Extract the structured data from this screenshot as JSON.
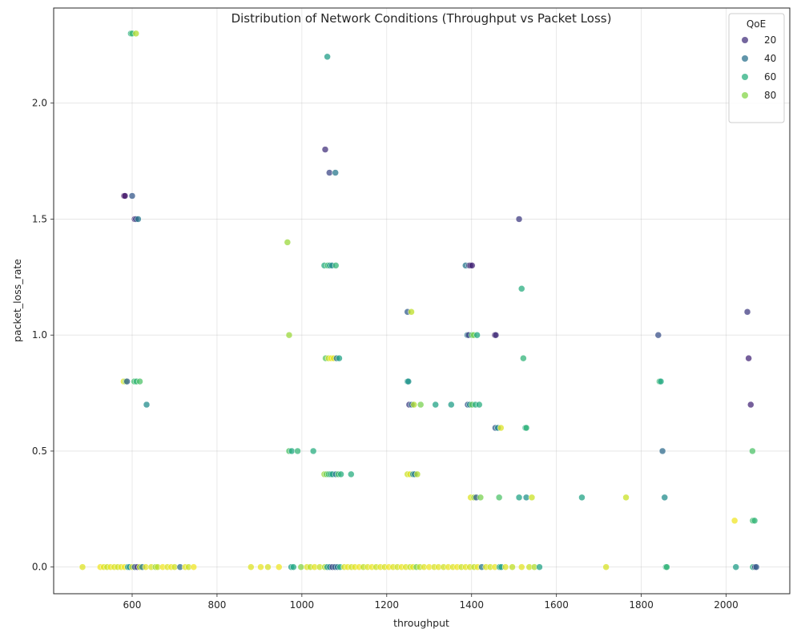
{
  "chart_data": {
    "type": "scatter",
    "title": "Distribution of Network Conditions (Throughput vs Packet Loss)",
    "xlabel": "throughput",
    "ylabel": "packet_loss_rate",
    "xlim": [
      415,
      2150
    ],
    "ylim": [
      -0.115,
      2.41
    ],
    "xticks": [
      600,
      800,
      1000,
      1200,
      1400,
      1600,
      1800,
      2000
    ],
    "yticks": [
      0.0,
      0.5,
      1.0,
      1.5,
      2.0
    ],
    "ytick_labels": [
      "0.0",
      "0.5",
      "1.0",
      "1.5",
      "2.0"
    ],
    "grid": true,
    "colormap": "viridis",
    "color_range": [
      0,
      100
    ],
    "legend": {
      "title": "QoE",
      "position": "top-right",
      "entries": [
        {
          "label": "20",
          "value": 20,
          "color": "#46337e"
        },
        {
          "label": "40",
          "value": 40,
          "color": "#2c728e"
        },
        {
          "label": "60",
          "value": 60,
          "color": "#29af7f"
        },
        {
          "label": "80",
          "value": 80,
          "color": "#86d549"
        }
      ]
    },
    "points": [
      {
        "x": 597,
        "y": 2.3,
        "qoe": 62
      },
      {
        "x": 600,
        "y": 2.3,
        "qoe": 68
      },
      {
        "x": 609,
        "y": 2.3,
        "qoe": 88
      },
      {
        "x": 1060,
        "y": 2.2,
        "qoe": 55
      },
      {
        "x": 1055,
        "y": 1.8,
        "qoe": 15
      },
      {
        "x": 1065,
        "y": 1.7,
        "qoe": 22
      },
      {
        "x": 1079,
        "y": 1.7,
        "qoe": 40
      },
      {
        "x": 581,
        "y": 1.6,
        "qoe": 5
      },
      {
        "x": 583,
        "y": 1.6,
        "qoe": 8
      },
      {
        "x": 600,
        "y": 1.6,
        "qoe": 28
      },
      {
        "x": 606,
        "y": 1.5,
        "qoe": 10
      },
      {
        "x": 609,
        "y": 1.5,
        "qoe": 22
      },
      {
        "x": 614,
        "y": 1.5,
        "qoe": 40
      },
      {
        "x": 1512,
        "y": 1.5,
        "qoe": 18
      },
      {
        "x": 966,
        "y": 1.4,
        "qoe": 85
      },
      {
        "x": 1053,
        "y": 1.3,
        "qoe": 62
      },
      {
        "x": 1061,
        "y": 1.3,
        "qoe": 70
      },
      {
        "x": 1066,
        "y": 1.3,
        "qoe": 55
      },
      {
        "x": 1071,
        "y": 1.3,
        "qoe": 48
      },
      {
        "x": 1080,
        "y": 1.3,
        "qoe": 66
      },
      {
        "x": 1386,
        "y": 1.3,
        "qoe": 40
      },
      {
        "x": 1394,
        "y": 1.3,
        "qoe": 25
      },
      {
        "x": 1397,
        "y": 1.3,
        "qoe": 8
      },
      {
        "x": 1401,
        "y": 1.3,
        "qoe": 12
      },
      {
        "x": 1518,
        "y": 1.2,
        "qoe": 62
      },
      {
        "x": 1249,
        "y": 1.1,
        "qoe": 30
      },
      {
        "x": 1258,
        "y": 1.1,
        "qoe": 90
      },
      {
        "x": 2050,
        "y": 1.1,
        "qoe": 18
      },
      {
        "x": 970,
        "y": 1.0,
        "qoe": 85
      },
      {
        "x": 1390,
        "y": 1.0,
        "qoe": 42
      },
      {
        "x": 1393,
        "y": 1.0,
        "qoe": 20
      },
      {
        "x": 1401,
        "y": 1.0,
        "qoe": 72
      },
      {
        "x": 1405,
        "y": 1.0,
        "qoe": 80
      },
      {
        "x": 1413,
        "y": 1.0,
        "qoe": 60
      },
      {
        "x": 1455,
        "y": 1.0,
        "qoe": 10
      },
      {
        "x": 1457,
        "y": 1.0,
        "qoe": 15
      },
      {
        "x": 1840,
        "y": 1.0,
        "qoe": 25
      },
      {
        "x": 1056,
        "y": 0.9,
        "qoe": 75
      },
      {
        "x": 1063,
        "y": 0.9,
        "qoe": 92
      },
      {
        "x": 1069,
        "y": 0.9,
        "qoe": 98
      },
      {
        "x": 1075,
        "y": 0.9,
        "qoe": 95
      },
      {
        "x": 1082,
        "y": 0.9,
        "qoe": 38
      },
      {
        "x": 1088,
        "y": 0.9,
        "qoe": 58
      },
      {
        "x": 1522,
        "y": 0.9,
        "qoe": 65
      },
      {
        "x": 2053,
        "y": 0.9,
        "qoe": 12
      },
      {
        "x": 580,
        "y": 0.8,
        "qoe": 95
      },
      {
        "x": 585,
        "y": 0.8,
        "qoe": 80
      },
      {
        "x": 588,
        "y": 0.8,
        "qoe": 30
      },
      {
        "x": 605,
        "y": 0.8,
        "qoe": 70
      },
      {
        "x": 610,
        "y": 0.8,
        "qoe": 66
      },
      {
        "x": 618,
        "y": 0.8,
        "qoe": 72
      },
      {
        "x": 1249,
        "y": 0.8,
        "qoe": 55
      },
      {
        "x": 1251,
        "y": 0.8,
        "qoe": 50
      },
      {
        "x": 1843,
        "y": 0.8,
        "qoe": 68
      },
      {
        "x": 1846,
        "y": 0.8,
        "qoe": 60
      },
      {
        "x": 634,
        "y": 0.7,
        "qoe": 48
      },
      {
        "x": 1253,
        "y": 0.7,
        "qoe": 20
      },
      {
        "x": 1259,
        "y": 0.7,
        "qoe": 35
      },
      {
        "x": 1264,
        "y": 0.7,
        "qoe": 88
      },
      {
        "x": 1280,
        "y": 0.7,
        "qoe": 80
      },
      {
        "x": 1315,
        "y": 0.7,
        "qoe": 58
      },
      {
        "x": 1352,
        "y": 0.7,
        "qoe": 55
      },
      {
        "x": 1391,
        "y": 0.7,
        "qoe": 28
      },
      {
        "x": 1396,
        "y": 0.7,
        "qoe": 50
      },
      {
        "x": 1401,
        "y": 0.7,
        "qoe": 76
      },
      {
        "x": 1409,
        "y": 0.7,
        "qoe": 62
      },
      {
        "x": 1418,
        "y": 0.7,
        "qoe": 62
      },
      {
        "x": 2058,
        "y": 0.7,
        "qoe": 12
      },
      {
        "x": 1456,
        "y": 0.6,
        "qoe": 30
      },
      {
        "x": 1462,
        "y": 0.6,
        "qoe": 48
      },
      {
        "x": 1469,
        "y": 0.6,
        "qoe": 95
      },
      {
        "x": 1527,
        "y": 0.6,
        "qoe": 60
      },
      {
        "x": 1529,
        "y": 0.6,
        "qoe": 65
      },
      {
        "x": 970,
        "y": 0.5,
        "qoe": 72
      },
      {
        "x": 976,
        "y": 0.5,
        "qoe": 60
      },
      {
        "x": 990,
        "y": 0.5,
        "qoe": 66
      },
      {
        "x": 1027,
        "y": 0.5,
        "qoe": 62
      },
      {
        "x": 1850,
        "y": 0.5,
        "qoe": 35
      },
      {
        "x": 2062,
        "y": 0.5,
        "qoe": 72
      },
      {
        "x": 1053,
        "y": 0.4,
        "qoe": 85
      },
      {
        "x": 1058,
        "y": 0.4,
        "qoe": 78
      },
      {
        "x": 1063,
        "y": 0.4,
        "qoe": 70
      },
      {
        "x": 1068,
        "y": 0.4,
        "qoe": 62
      },
      {
        "x": 1072,
        "y": 0.4,
        "qoe": 55
      },
      {
        "x": 1080,
        "y": 0.4,
        "qoe": 40
      },
      {
        "x": 1086,
        "y": 0.4,
        "qoe": 72
      },
      {
        "x": 1092,
        "y": 0.4,
        "qoe": 62
      },
      {
        "x": 1116,
        "y": 0.4,
        "qoe": 62
      },
      {
        "x": 1249,
        "y": 0.4,
        "qoe": 92
      },
      {
        "x": 1255,
        "y": 0.4,
        "qoe": 95
      },
      {
        "x": 1262,
        "y": 0.4,
        "qoe": 50
      },
      {
        "x": 1266,
        "y": 0.4,
        "qoe": 40
      },
      {
        "x": 1272,
        "y": 0.4,
        "qoe": 88
      },
      {
        "x": 1398,
        "y": 0.3,
        "qoe": 95
      },
      {
        "x": 1406,
        "y": 0.3,
        "qoe": 85
      },
      {
        "x": 1411,
        "y": 0.3,
        "qoe": 30
      },
      {
        "x": 1421,
        "y": 0.3,
        "qoe": 80
      },
      {
        "x": 1465,
        "y": 0.3,
        "qoe": 72
      },
      {
        "x": 1512,
        "y": 0.3,
        "qoe": 58
      },
      {
        "x": 1529,
        "y": 0.3,
        "qoe": 50
      },
      {
        "x": 1542,
        "y": 0.3,
        "qoe": 92
      },
      {
        "x": 1660,
        "y": 0.3,
        "qoe": 58
      },
      {
        "x": 1764,
        "y": 0.3,
        "qoe": 92
      },
      {
        "x": 1855,
        "y": 0.3,
        "qoe": 48
      },
      {
        "x": 2020,
        "y": 0.2,
        "qoe": 98
      },
      {
        "x": 2063,
        "y": 0.2,
        "qoe": 70
      },
      {
        "x": 2067,
        "y": 0.2,
        "qoe": 65
      },
      {
        "x": 483,
        "y": 0.0,
        "qoe": 95
      },
      {
        "x": 525,
        "y": 0.0,
        "qoe": 98
      },
      {
        "x": 533,
        "y": 0.0,
        "qoe": 96
      },
      {
        "x": 541,
        "y": 0.0,
        "qoe": 92
      },
      {
        "x": 549,
        "y": 0.0,
        "qoe": 97
      },
      {
        "x": 558,
        "y": 0.0,
        "qoe": 95
      },
      {
        "x": 566,
        "y": 0.0,
        "qoe": 93
      },
      {
        "x": 574,
        "y": 0.0,
        "qoe": 96
      },
      {
        "x": 582,
        "y": 0.0,
        "qoe": 98
      },
      {
        "x": 590,
        "y": 0.0,
        "qoe": 55
      },
      {
        "x": 594,
        "y": 0.0,
        "qoe": 50
      },
      {
        "x": 600,
        "y": 0.0,
        "qoe": 94
      },
      {
        "x": 606,
        "y": 0.0,
        "qoe": 30
      },
      {
        "x": 612,
        "y": 0.0,
        "qoe": 15
      },
      {
        "x": 618,
        "y": 0.0,
        "qoe": 90
      },
      {
        "x": 624,
        "y": 0.0,
        "qoe": 40
      },
      {
        "x": 632,
        "y": 0.0,
        "qoe": 96
      },
      {
        "x": 645,
        "y": 0.0,
        "qoe": 94
      },
      {
        "x": 655,
        "y": 0.0,
        "qoe": 85
      },
      {
        "x": 660,
        "y": 0.0,
        "qoe": 90
      },
      {
        "x": 672,
        "y": 0.0,
        "qoe": 98
      },
      {
        "x": 683,
        "y": 0.0,
        "qoe": 95
      },
      {
        "x": 692,
        "y": 0.0,
        "qoe": 97
      },
      {
        "x": 700,
        "y": 0.0,
        "qoe": 93
      },
      {
        "x": 713,
        "y": 0.0,
        "qoe": 35
      },
      {
        "x": 725,
        "y": 0.0,
        "qoe": 96
      },
      {
        "x": 733,
        "y": 0.0,
        "qoe": 92
      },
      {
        "x": 745,
        "y": 0.0,
        "qoe": 98
      },
      {
        "x": 880,
        "y": 0.0,
        "qoe": 95
      },
      {
        "x": 903,
        "y": 0.0,
        "qoe": 97
      },
      {
        "x": 920,
        "y": 0.0,
        "qoe": 94
      },
      {
        "x": 946,
        "y": 0.0,
        "qoe": 98
      },
      {
        "x": 975,
        "y": 0.0,
        "qoe": 55
      },
      {
        "x": 980,
        "y": 0.0,
        "qoe": 60
      },
      {
        "x": 998,
        "y": 0.0,
        "qoe": 82
      },
      {
        "x": 1012,
        "y": 0.0,
        "qoe": 95
      },
      {
        "x": 1020,
        "y": 0.0,
        "qoe": 90
      },
      {
        "x": 1030,
        "y": 0.0,
        "qoe": 96
      },
      {
        "x": 1042,
        "y": 0.0,
        "qoe": 92
      },
      {
        "x": 1054,
        "y": 0.0,
        "qoe": 88
      },
      {
        "x": 1060,
        "y": 0.0,
        "qoe": 55
      },
      {
        "x": 1066,
        "y": 0.0,
        "qoe": 45
      },
      {
        "x": 1072,
        "y": 0.0,
        "qoe": 20
      },
      {
        "x": 1078,
        "y": 0.0,
        "qoe": 30
      },
      {
        "x": 1084,
        "y": 0.0,
        "qoe": 40
      },
      {
        "x": 1090,
        "y": 0.0,
        "qoe": 62
      },
      {
        "x": 1100,
        "y": 0.0,
        "qoe": 94
      },
      {
        "x": 1108,
        "y": 0.0,
        "qoe": 97
      },
      {
        "x": 1117,
        "y": 0.0,
        "qoe": 93
      },
      {
        "x": 1125,
        "y": 0.0,
        "qoe": 96
      },
      {
        "x": 1135,
        "y": 0.0,
        "qoe": 98
      },
      {
        "x": 1145,
        "y": 0.0,
        "qoe": 90
      },
      {
        "x": 1155,
        "y": 0.0,
        "qoe": 95
      },
      {
        "x": 1165,
        "y": 0.0,
        "qoe": 97
      },
      {
        "x": 1175,
        "y": 0.0,
        "qoe": 92
      },
      {
        "x": 1185,
        "y": 0.0,
        "qoe": 96
      },
      {
        "x": 1195,
        "y": 0.0,
        "qoe": 94
      },
      {
        "x": 1205,
        "y": 0.0,
        "qoe": 98
      },
      {
        "x": 1215,
        "y": 0.0,
        "qoe": 95
      },
      {
        "x": 1225,
        "y": 0.0,
        "qoe": 93
      },
      {
        "x": 1235,
        "y": 0.0,
        "qoe": 97
      },
      {
        "x": 1245,
        "y": 0.0,
        "qoe": 95
      },
      {
        "x": 1255,
        "y": 0.0,
        "qoe": 92
      },
      {
        "x": 1262,
        "y": 0.0,
        "qoe": 96
      },
      {
        "x": 1270,
        "y": 0.0,
        "qoe": 80
      },
      {
        "x": 1278,
        "y": 0.0,
        "qoe": 90
      },
      {
        "x": 1288,
        "y": 0.0,
        "qoe": 95
      },
      {
        "x": 1300,
        "y": 0.0,
        "qoe": 98
      },
      {
        "x": 1312,
        "y": 0.0,
        "qoe": 94
      },
      {
        "x": 1322,
        "y": 0.0,
        "qoe": 96
      },
      {
        "x": 1334,
        "y": 0.0,
        "qoe": 93
      },
      {
        "x": 1345,
        "y": 0.0,
        "qoe": 97
      },
      {
        "x": 1356,
        "y": 0.0,
        "qoe": 95
      },
      {
        "x": 1366,
        "y": 0.0,
        "qoe": 98
      },
      {
        "x": 1376,
        "y": 0.0,
        "qoe": 92
      },
      {
        "x": 1386,
        "y": 0.0,
        "qoe": 96
      },
      {
        "x": 1396,
        "y": 0.0,
        "qoe": 94
      },
      {
        "x": 1406,
        "y": 0.0,
        "qoe": 90
      },
      {
        "x": 1414,
        "y": 0.0,
        "qoe": 97
      },
      {
        "x": 1424,
        "y": 0.0,
        "qoe": 40
      },
      {
        "x": 1434,
        "y": 0.0,
        "qoe": 95
      },
      {
        "x": 1444,
        "y": 0.0,
        "qoe": 93
      },
      {
        "x": 1455,
        "y": 0.0,
        "qoe": 97
      },
      {
        "x": 1466,
        "y": 0.0,
        "qoe": 60
      },
      {
        "x": 1470,
        "y": 0.0,
        "qoe": 55
      },
      {
        "x": 1480,
        "y": 0.0,
        "qoe": 95
      },
      {
        "x": 1496,
        "y": 0.0,
        "qoe": 90
      },
      {
        "x": 1518,
        "y": 0.0,
        "qoe": 96
      },
      {
        "x": 1536,
        "y": 0.0,
        "qoe": 92
      },
      {
        "x": 1548,
        "y": 0.0,
        "qoe": 88
      },
      {
        "x": 1560,
        "y": 0.0,
        "qoe": 58
      },
      {
        "x": 1717,
        "y": 0.0,
        "qoe": 94
      },
      {
        "x": 1858,
        "y": 0.0,
        "qoe": 62
      },
      {
        "x": 1860,
        "y": 0.0,
        "qoe": 66
      },
      {
        "x": 2023,
        "y": 0.0,
        "qoe": 55
      },
      {
        "x": 2063,
        "y": 0.0,
        "qoe": 62
      },
      {
        "x": 2068,
        "y": 0.0,
        "qoe": 20
      },
      {
        "x": 2071,
        "y": 0.0,
        "qoe": 30
      }
    ]
  }
}
